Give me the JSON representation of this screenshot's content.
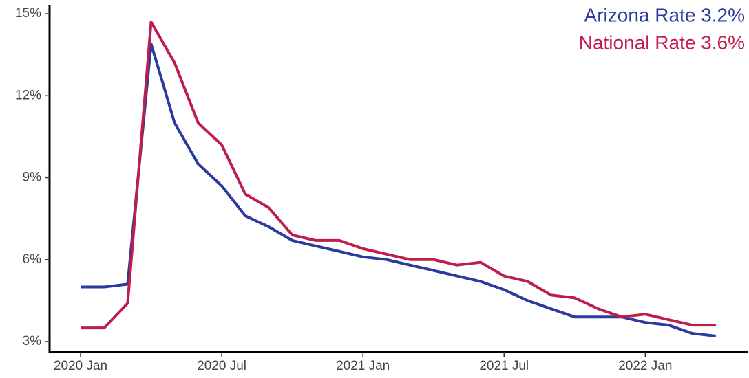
{
  "chart_data": {
    "type": "line",
    "categories": [
      "2020 Jan",
      null,
      null,
      null,
      null,
      null,
      "2020 Jul",
      null,
      null,
      null,
      null,
      null,
      "2021 Jan",
      null,
      null,
      null,
      null,
      null,
      "2021 Jul",
      null,
      null,
      null,
      null,
      null,
      "2022 Jan",
      null,
      null,
      null
    ],
    "series": [
      {
        "name": "Arizona Rate 3.2%",
        "color": "#2a3a9e",
        "values": [
          5.0,
          5.0,
          5.1,
          13.9,
          11.0,
          9.5,
          8.7,
          7.6,
          7.2,
          6.7,
          6.5,
          6.3,
          6.1,
          6.0,
          5.8,
          5.6,
          5.4,
          5.2,
          4.9,
          4.5,
          4.2,
          3.9,
          3.9,
          3.9,
          3.7,
          3.6,
          3.3,
          3.2
        ]
      },
      {
        "name": "National Rate 3.6%",
        "color": "#be1e4a",
        "values": [
          3.5,
          3.5,
          4.4,
          14.7,
          13.2,
          11.0,
          10.2,
          8.4,
          7.9,
          6.9,
          6.7,
          6.7,
          6.4,
          6.2,
          6.0,
          6.0,
          5.8,
          5.9,
          5.4,
          5.2,
          4.7,
          4.6,
          4.2,
          3.9,
          4.0,
          3.8,
          3.6,
          3.6
        ]
      }
    ],
    "ylim": [
      2.7,
      15.25
    ],
    "yticks": [
      {
        "value": 3,
        "label": "3%"
      },
      {
        "value": 6,
        "label": "6%"
      },
      {
        "value": 9,
        "label": "9%"
      },
      {
        "value": 12,
        "label": "12%"
      },
      {
        "value": 15,
        "label": "15%"
      }
    ],
    "grid": false,
    "legend": "top-right"
  }
}
